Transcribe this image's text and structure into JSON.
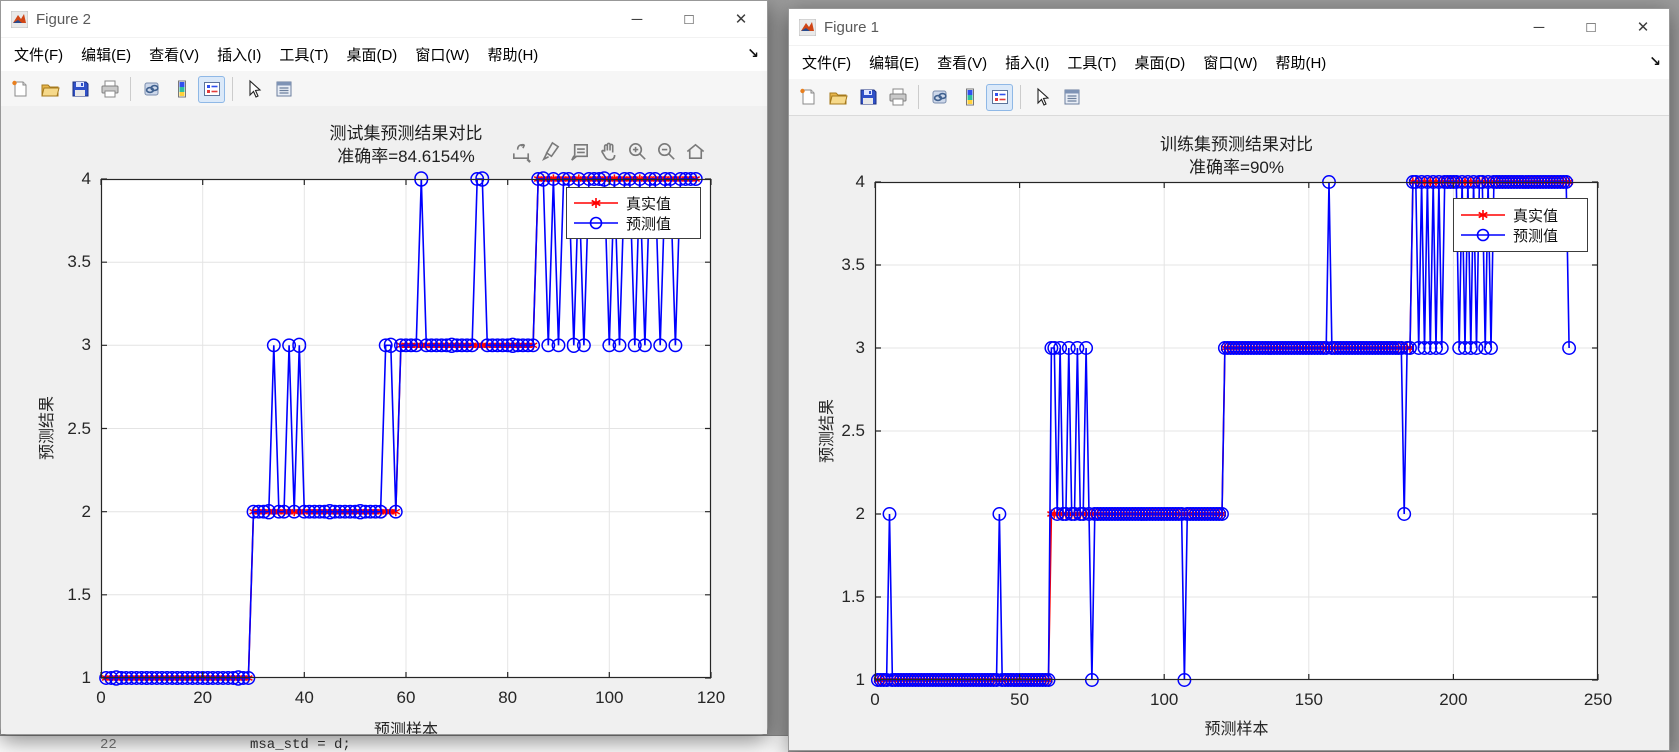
{
  "windows": [
    {
      "title": "Figure 2",
      "menu": [
        "文件(F)",
        "编辑(E)",
        "查看(V)",
        "插入(I)",
        "工具(T)",
        "桌面(D)",
        "窗口(W)",
        "帮助(H)"
      ],
      "menu_overflow": "↘",
      "buttons": {
        "minimize": "─",
        "maximize": "□",
        "close": "✕"
      }
    },
    {
      "title": "Figure 1",
      "menu": [
        "文件(F)",
        "编辑(E)",
        "查看(V)",
        "插入(I)",
        "工具(T)",
        "桌面(D)",
        "窗口(W)",
        "帮助(H)"
      ],
      "menu_overflow": "↘",
      "buttons": {
        "minimize": "─",
        "maximize": "□",
        "close": "✕"
      }
    }
  ],
  "toolbar_icons": [
    "new-figure",
    "open-file",
    "save-figure",
    "print-figure",
    "link-plot",
    "insert-colorbar",
    "insert-legend",
    "edit-plot",
    "property-inspector"
  ],
  "axes_toolbar_icons": [
    "export",
    "brush",
    "datatips",
    "pan",
    "zoom-in",
    "zoom-out",
    "restore-view"
  ],
  "background_editor": {
    "line_number": "22",
    "code": "msa_std = d;"
  },
  "colors": {
    "true_series": "#ff0000",
    "pred_series": "#0000ff",
    "grid": "#e4e4e4",
    "axis": "#262626",
    "canvas_bg": "#f0f0f0"
  },
  "chart_data": [
    {
      "type": "line",
      "window": "Figure 2",
      "title": "测试集预测结果对比",
      "subtitle": "准确率=84.6154%",
      "xlabel": "预测样本",
      "ylabel": "预测结果",
      "xlim": [
        0,
        120
      ],
      "ylim": [
        1,
        4
      ],
      "xticks": [
        "0",
        "20",
        "40",
        "60",
        "80",
        "100",
        "120"
      ],
      "yticks": [
        "1",
        "1.5",
        "2",
        "2.5",
        "3",
        "3.5",
        "4"
      ],
      "grid": true,
      "legend_position": "top-right",
      "n_samples": 117,
      "series": [
        {
          "name": "真实值",
          "color": "#ff0000",
          "marker": "asterisk",
          "segments": [
            {
              "from": 1,
              "to": 29,
              "y": 1
            },
            {
              "from": 30,
              "to": 58,
              "y": 2
            },
            {
              "from": 59,
              "to": 85,
              "y": 3
            },
            {
              "from": 86,
              "to": 117,
              "y": 4
            }
          ]
        },
        {
          "name": "预测值",
          "color": "#0000ff",
          "marker": "circle",
          "base": "真实值",
          "overrides": [
            {
              "x": 34,
              "y": 3
            },
            {
              "x": 37,
              "y": 3
            },
            {
              "x": 39,
              "y": 3
            },
            {
              "x": 56,
              "y": 3
            },
            {
              "x": 57,
              "y": 3
            },
            {
              "x": 63,
              "y": 4
            },
            {
              "x": 74,
              "y": 4
            },
            {
              "x": 75,
              "y": 4
            },
            {
              "x": 88,
              "y": 3
            },
            {
              "x": 90,
              "y": 3
            },
            {
              "x": 93,
              "y": 3
            },
            {
              "x": 95,
              "y": 3
            },
            {
              "x": 100,
              "y": 3
            },
            {
              "x": 102,
              "y": 3
            },
            {
              "x": 105,
              "y": 3
            },
            {
              "x": 107,
              "y": 3
            },
            {
              "x": 110,
              "y": 3
            },
            {
              "x": 113,
              "y": 3
            }
          ]
        }
      ]
    },
    {
      "type": "line",
      "window": "Figure 1",
      "title": "训练集预测结果对比",
      "subtitle": "准确率=90%",
      "xlabel": "预测样本",
      "ylabel": "预测结果",
      "xlim": [
        0,
        250
      ],
      "ylim": [
        1,
        4
      ],
      "xticks": [
        "0",
        "50",
        "100",
        "150",
        "200",
        "250"
      ],
      "yticks": [
        "1",
        "1.5",
        "2",
        "2.5",
        "3",
        "3.5",
        "4"
      ],
      "grid": true,
      "legend_position": "top-right",
      "n_samples": 240,
      "series": [
        {
          "name": "真实值",
          "color": "#ff0000",
          "marker": "asterisk",
          "segments": [
            {
              "from": 1,
              "to": 60,
              "y": 1
            },
            {
              "from": 61,
              "to": 120,
              "y": 2
            },
            {
              "from": 121,
              "to": 185,
              "y": 3
            },
            {
              "from": 186,
              "to": 240,
              "y": 4
            }
          ]
        },
        {
          "name": "预测值",
          "color": "#0000ff",
          "marker": "circle",
          "base": "真实值",
          "overrides": [
            {
              "x": 5,
              "y": 2
            },
            {
              "x": 43,
              "y": 2
            },
            {
              "x": 61,
              "y": 3
            },
            {
              "x": 62,
              "y": 3
            },
            {
              "x": 64,
              "y": 3
            },
            {
              "x": 67,
              "y": 3
            },
            {
              "x": 70,
              "y": 3
            },
            {
              "x": 73,
              "y": 3
            },
            {
              "x": 75,
              "y": 1
            },
            {
              "x": 107,
              "y": 1
            },
            {
              "x": 157,
              "y": 4
            },
            {
              "x": 183,
              "y": 2
            },
            {
              "x": 188,
              "y": 3
            },
            {
              "x": 190,
              "y": 3
            },
            {
              "x": 192,
              "y": 3
            },
            {
              "x": 194,
              "y": 3
            },
            {
              "x": 196,
              "y": 3
            },
            {
              "x": 202,
              "y": 3
            },
            {
              "x": 204,
              "y": 3
            },
            {
              "x": 206,
              "y": 3
            },
            {
              "x": 208,
              "y": 3
            },
            {
              "x": 211,
              "y": 3
            },
            {
              "x": 213,
              "y": 3
            },
            {
              "x": 240,
              "y": 3
            }
          ]
        }
      ]
    }
  ]
}
